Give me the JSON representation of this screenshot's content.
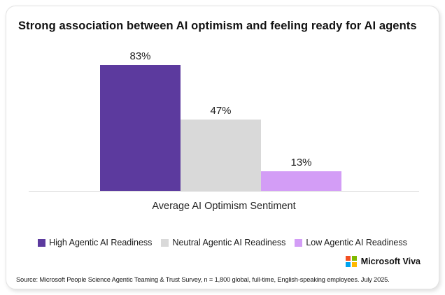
{
  "card": {
    "title": "Strong association between AI optimism and feeling ready for AI agents"
  },
  "chart_data": {
    "type": "bar",
    "title": "Strong association between AI optimism and feeling ready for AI agents",
    "categories": [
      "High Agentic AI Readiness",
      "Neutral Agentic AI Readiness",
      "Low Agentic AI Readiness"
    ],
    "values": [
      83,
      47,
      13
    ],
    "data_labels": [
      "83%",
      "47%",
      "13%"
    ],
    "bar_colors": [
      "#5C3A9E",
      "#D9D9D9",
      "#D39DF6"
    ],
    "xlabel": "Average AI Optimism Sentiment",
    "ylabel": "",
    "ylim": [
      0,
      100
    ],
    "grid": false,
    "legend_position": "bottom"
  },
  "legend": {
    "items": [
      {
        "label": "High Agentic AI Readiness",
        "color": "#5C3A9E"
      },
      {
        "label": "Neutral Agentic AI Readiness",
        "color": "#D9D9D9"
      },
      {
        "label": "Low Agentic AI Readiness",
        "color": "#D39DF6"
      }
    ]
  },
  "footer": {
    "source": "Source: Microsoft People Science Agentic Teaming & Trust Survey, n = 1,800 global, full-time, English-speaking employees. July 2025.",
    "brand": "Microsoft Viva",
    "logo_colors": {
      "tl": "#F25022",
      "tr": "#7FBA00",
      "bl": "#00A4EF",
      "br": "#FFB900"
    }
  }
}
